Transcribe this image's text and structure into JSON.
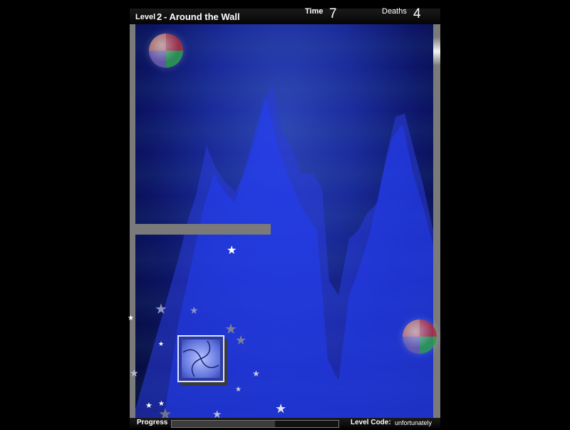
{
  "hud": {
    "level_word": "Level",
    "level_number": "2",
    "level_title": "- Around the Wall",
    "time_label": "Time",
    "time_value": "7",
    "deaths_label": "Deaths",
    "deaths_value": "4"
  },
  "footer": {
    "progress_label": "Progress",
    "progress_fraction": 0.62,
    "level_code_label": "Level Code:",
    "level_code_value": "unfortunately"
  },
  "icons": {
    "ball": "striped-ball-icon",
    "goal": "swirl-tile-icon",
    "star": "star-icon"
  }
}
